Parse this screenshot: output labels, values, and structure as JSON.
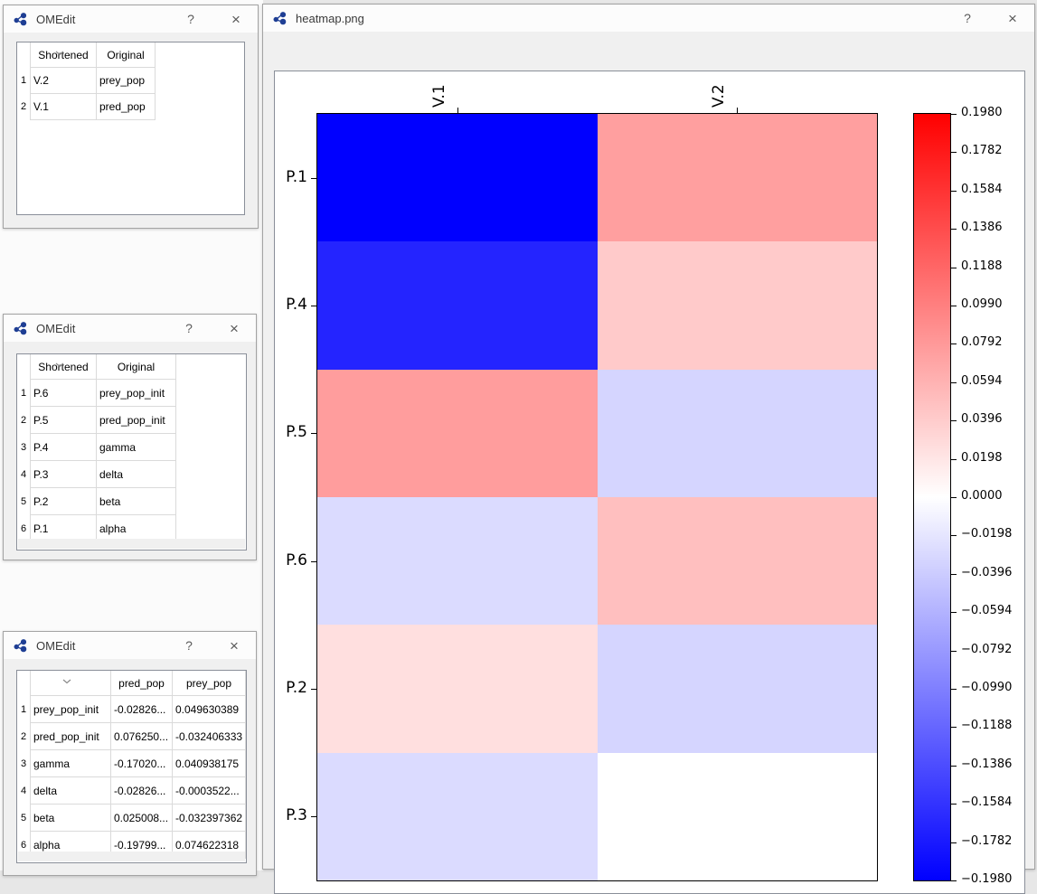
{
  "icons": {
    "help_label": "?",
    "close_label": "×",
    "sort": "chevron-down-icon",
    "logo": "omedit-logo"
  },
  "window1": {
    "title": "OMEdit",
    "table": {
      "headers": {
        "shortened": "Shortened",
        "original": "Original"
      },
      "rows": [
        {
          "num": "1",
          "shortened": "V.2",
          "original": "prey_pop"
        },
        {
          "num": "2",
          "shortened": "V.1",
          "original": "pred_pop"
        }
      ]
    }
  },
  "window2": {
    "title": "OMEdit",
    "table": {
      "headers": {
        "shortened": "Shortened",
        "original": "Original"
      },
      "rows": [
        {
          "num": "1",
          "shortened": "P.6",
          "original": "prey_pop_init"
        },
        {
          "num": "2",
          "shortened": "P.5",
          "original": "pred_pop_init"
        },
        {
          "num": "3",
          "shortened": "P.4",
          "original": "gamma"
        },
        {
          "num": "4",
          "shortened": "P.3",
          "original": "delta"
        },
        {
          "num": "5",
          "shortened": "P.2",
          "original": "beta"
        },
        {
          "num": "6",
          "shortened": "P.1",
          "original": "alpha"
        }
      ]
    }
  },
  "window3": {
    "title": "OMEdit",
    "table": {
      "headers": {
        "name": "",
        "pred_pop": "pred_pop",
        "prey_pop": "prey_pop"
      },
      "rows": [
        {
          "num": "1",
          "name": "prey_pop_init",
          "pred_pop": "-0.02826...",
          "prey_pop": "0.049630389"
        },
        {
          "num": "2",
          "name": "pred_pop_init",
          "pred_pop": "0.076250...",
          "prey_pop": "-0.032406333"
        },
        {
          "num": "3",
          "name": "gamma",
          "pred_pop": "-0.17020...",
          "prey_pop": "0.040938175"
        },
        {
          "num": "4",
          "name": "delta",
          "pred_pop": "-0.02826...",
          "prey_pop": "-0.0003522..."
        },
        {
          "num": "5",
          "name": "beta",
          "pred_pop": "0.025008...",
          "prey_pop": "-0.032397362"
        },
        {
          "num": "6",
          "name": "alpha",
          "pred_pop": "-0.19799...",
          "prey_pop": "0.074622318"
        }
      ]
    }
  },
  "heatmap_window": {
    "title": "heatmap.png"
  },
  "chart_data": {
    "type": "heatmap",
    "title": "",
    "col_labels": [
      "V.1",
      "V.2"
    ],
    "row_labels": [
      "P.1",
      "P.4",
      "P.5",
      "P.6",
      "P.2",
      "P.3"
    ],
    "values": [
      [
        -0.19799,
        0.074622318
      ],
      [
        -0.1702,
        0.040938175
      ],
      [
        0.07625,
        -0.032406333
      ],
      [
        -0.02826,
        0.049630389
      ],
      [
        0.025008,
        -0.032397362
      ],
      [
        -0.02826,
        -0.0003522
      ]
    ],
    "colormap": "bwr",
    "vmin": -0.198,
    "vmax": 0.198,
    "legend_position": "right",
    "colorbar_ticks": [
      "0.1980",
      "0.1782",
      "0.1584",
      "0.1386",
      "0.1188",
      "0.0990",
      "0.0792",
      "0.0594",
      "0.0396",
      "0.0198",
      "0.0000",
      "−0.0198",
      "−0.0396",
      "−0.0594",
      "−0.0792",
      "−0.0990",
      "−0.1188",
      "−0.1386",
      "−0.1584",
      "−0.1782",
      "−0.1980"
    ]
  }
}
